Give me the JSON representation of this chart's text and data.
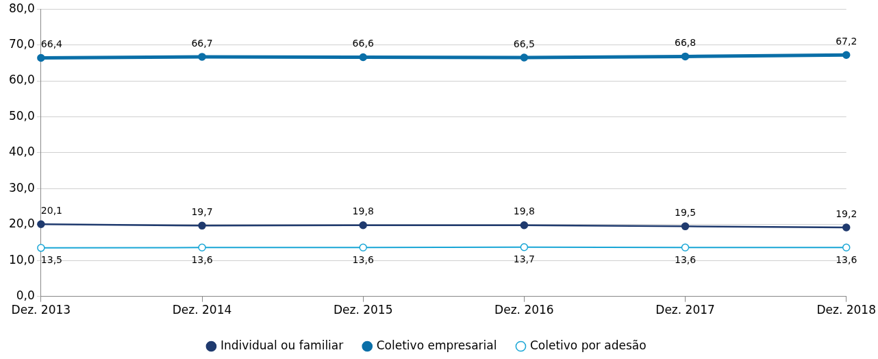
{
  "chart_data": {
    "type": "line",
    "categories": [
      "Dez. 2013",
      "Dez. 2014",
      "Dez. 2015",
      "Dez. 2016",
      "Dez. 2017",
      "Dez. 2018"
    ],
    "series": [
      {
        "name": "Individual ou familiar",
        "color": "#1f3a6e",
        "values": [
          20.1,
          19.7,
          19.8,
          19.8,
          19.5,
          19.2
        ],
        "value_labels": [
          "20,1",
          "19,7",
          "19,8",
          "19,8",
          "19,5",
          "19,2"
        ]
      },
      {
        "name": "Coletivo empresarial",
        "color": "#0a6fa8",
        "values": [
          66.4,
          66.7,
          66.6,
          66.5,
          66.8,
          67.2
        ],
        "value_labels": [
          "66,4",
          "66,7",
          "66,6",
          "66,5",
          "66,8",
          "67,2"
        ]
      },
      {
        "name": "Coletivo por adesão",
        "color": "#19a6d6",
        "values": [
          13.5,
          13.6,
          13.6,
          13.7,
          13.6,
          13.6
        ],
        "value_labels": [
          "13,5",
          "13,6",
          "13,6",
          "13,7",
          "13,6",
          "13,6"
        ]
      }
    ],
    "ylim": [
      0,
      80
    ],
    "yticks": [
      {
        "value": 0,
        "label": "0,0"
      },
      {
        "value": 10,
        "label": "10,0"
      },
      {
        "value": 20,
        "label": "20,0"
      },
      {
        "value": 30,
        "label": "30,0"
      },
      {
        "value": 40,
        "label": "40,0"
      },
      {
        "value": 50,
        "label": "50,0"
      },
      {
        "value": 60,
        "label": "60,0"
      },
      {
        "value": 70,
        "label": "70,0"
      },
      {
        "value": 80,
        "label": "80,0"
      }
    ],
    "grid": "y",
    "legend": "bottom",
    "marker": "circle",
    "line_style": "solid"
  }
}
